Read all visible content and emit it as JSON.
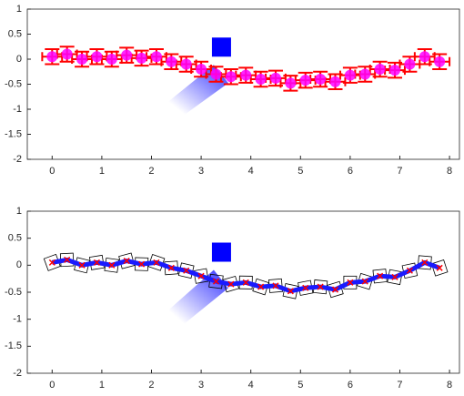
{
  "chart_data": [
    {
      "type": "errorbar",
      "x": [
        0,
        0.3,
        0.6,
        0.9,
        1.2,
        1.5,
        1.8,
        2.1,
        2.4,
        2.7,
        3.0,
        3.3,
        3.6,
        3.9,
        4.2,
        4.5,
        4.8,
        5.1,
        5.4,
        5.7,
        6.0,
        6.3,
        6.6,
        6.9,
        7.2,
        7.5,
        7.8
      ],
      "values": [
        0.05,
        0.1,
        0.0,
        0.05,
        0.0,
        0.08,
        0.02,
        0.05,
        -0.05,
        -0.1,
        -0.2,
        -0.3,
        -0.35,
        -0.32,
        -0.4,
        -0.38,
        -0.48,
        -0.42,
        -0.4,
        -0.45,
        -0.32,
        -0.3,
        -0.2,
        -0.22,
        -0.1,
        0.05,
        -0.05
      ],
      "yerr": 0.15,
      "xerr": 0.2,
      "color": "#ff0000",
      "marker_color": "#ff00ff",
      "xlim": [
        -0.5,
        8.2
      ],
      "ylim": [
        -2,
        1
      ],
      "xticks": [
        0,
        1,
        2,
        3,
        4,
        5,
        6,
        7,
        8
      ],
      "yticks": [
        -2,
        -1.5,
        -1,
        -0.5,
        0,
        0.5,
        1
      ]
    },
    {
      "type": "line",
      "x": [
        0,
        0.3,
        0.6,
        0.9,
        1.2,
        1.5,
        1.8,
        2.1,
        2.4,
        2.7,
        3.0,
        3.3,
        3.6,
        3.9,
        4.2,
        4.5,
        4.8,
        5.1,
        5.4,
        5.7,
        6.0,
        6.3,
        6.6,
        6.9,
        7.2,
        7.5,
        7.8
      ],
      "values": [
        0.05,
        0.1,
        0.0,
        0.05,
        0.0,
        0.08,
        0.02,
        0.05,
        -0.05,
        -0.1,
        -0.2,
        -0.3,
        -0.35,
        -0.32,
        -0.4,
        -0.38,
        -0.48,
        -0.42,
        -0.4,
        -0.45,
        -0.32,
        -0.3,
        -0.2,
        -0.22,
        -0.1,
        0.05,
        -0.05
      ],
      "color": "#1a1aff",
      "marker_color": "#ff0000",
      "box_color": "#000000",
      "xlim": [
        -0.5,
        8.2
      ],
      "ylim": [
        -2,
        1
      ],
      "xticks": [
        0,
        1,
        2,
        3,
        4,
        5,
        6,
        7,
        8
      ],
      "yticks": [
        -2,
        -1.5,
        -1,
        -0.5,
        0,
        0.5,
        1
      ]
    }
  ]
}
